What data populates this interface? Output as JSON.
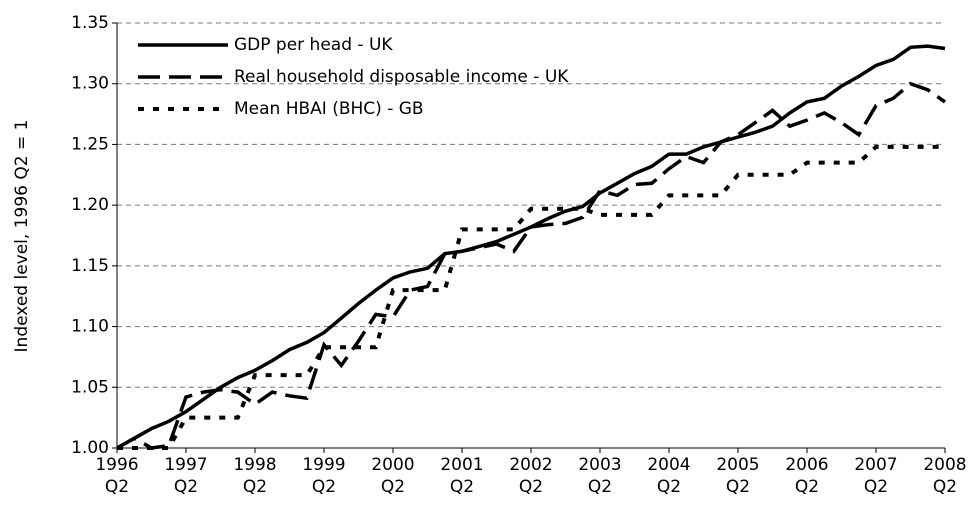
{
  "chart_data": {
    "type": "line",
    "y_label": "Indexed level, 1996 Q2 = 1",
    "categories": [
      "1996 Q2",
      null,
      null,
      null,
      "1997 Q2",
      null,
      null,
      null,
      "1998 Q2",
      null,
      null,
      null,
      "1999 Q2",
      null,
      null,
      null,
      "2000 Q2",
      null,
      null,
      null,
      "2001 Q2",
      null,
      null,
      null,
      "2002 Q2",
      null,
      null,
      null,
      "2003 Q2",
      null,
      null,
      null,
      "2004 Q2",
      null,
      null,
      null,
      "2005 Q2",
      null,
      null,
      null,
      "2006 Q2",
      null,
      null,
      null,
      "2007 Q2",
      null,
      null,
      null,
      "2008 Q2"
    ],
    "series": [
      {
        "name": "GDP per head - UK",
        "color": "#000000",
        "style": "solid",
        "values": [
          1.0,
          1.008,
          1.016,
          1.022,
          1.03,
          1.04,
          1.05,
          1.058,
          1.064,
          1.072,
          1.081,
          1.087,
          1.095,
          1.107,
          1.119,
          1.13,
          1.14,
          1.145,
          1.148,
          1.16,
          1.162,
          1.166,
          1.17,
          1.176,
          1.182,
          1.189,
          1.195,
          1.199,
          1.21,
          1.218,
          1.226,
          1.232,
          1.242,
          1.242,
          1.248,
          1.252,
          1.256,
          1.26,
          1.265,
          1.276,
          1.285,
          1.288,
          1.298,
          1.306,
          1.315,
          1.32,
          1.33,
          1.331,
          1.329
        ]
      },
      {
        "name": "Real household disposable income - UK",
        "color": "#000000",
        "style": "dashed",
        "values": [
          1.0,
          1.008,
          1.0,
          1.002,
          1.042,
          1.046,
          1.048,
          1.046,
          1.036,
          1.046,
          1.043,
          1.041,
          1.085,
          1.068,
          1.088,
          1.11,
          1.108,
          1.13,
          1.133,
          1.16,
          1.162,
          1.165,
          1.168,
          1.162,
          1.182,
          1.184,
          1.185,
          1.19,
          1.212,
          1.208,
          1.217,
          1.218,
          1.23,
          1.24,
          1.235,
          1.252,
          1.258,
          1.268,
          1.278,
          1.265,
          1.27,
          1.276,
          1.268,
          1.258,
          1.282,
          1.288,
          1.3,
          1.295,
          1.285
        ]
      },
      {
        "name": "Mean HBAI (BHC) - GB",
        "color": "#000000",
        "style": "dotted",
        "values": [
          1.0,
          1.0,
          1.0,
          1.0,
          1.025,
          1.025,
          1.025,
          1.025,
          1.06,
          1.06,
          1.06,
          1.06,
          1.083,
          1.083,
          1.083,
          1.083,
          1.13,
          1.13,
          1.13,
          1.13,
          1.18,
          1.18,
          1.18,
          1.18,
          1.197,
          1.197,
          1.197,
          1.197,
          1.192,
          1.192,
          1.192,
          1.192,
          1.208,
          1.208,
          1.208,
          1.208,
          1.225,
          1.225,
          1.225,
          1.225,
          1.235,
          1.235,
          1.235,
          1.235,
          1.248,
          1.248,
          1.248,
          1.248,
          1.248
        ]
      }
    ],
    "ylim": [
      1.0,
      1.35
    ],
    "yticks": [
      {
        "value": 1.0,
        "label": "1.00"
      },
      1.05,
      {
        "value": 1.1,
        "label": "1.10"
      },
      1.15,
      {
        "value": 1.2,
        "label": "1.20"
      },
      1.25,
      {
        "value": 1.3,
        "label": "1.30"
      },
      1.35
    ],
    "grid": true,
    "legend": "top-left"
  }
}
